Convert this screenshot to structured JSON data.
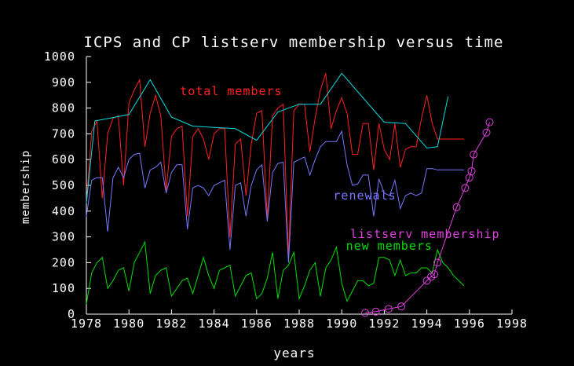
{
  "chart_data": {
    "type": "line",
    "title": "ICPS and CP listserv membership versus time",
    "xlabel": "years",
    "ylabel": "membership",
    "xlim": [
      1978,
      1998
    ],
    "ylim": [
      0,
      1000
    ],
    "grid": false,
    "xticks": [
      1978,
      1980,
      1982,
      1984,
      1986,
      1988,
      1990,
      1992,
      1994,
      1996,
      1998
    ],
    "yticks": [
      0,
      100,
      200,
      300,
      400,
      500,
      600,
      700,
      800,
      900,
      1000
    ],
    "colors": {
      "background": "#000000",
      "axes": "#ffffff",
      "total": "#ff2020",
      "envelope": "#00e0e0",
      "renewals": "#7878ff",
      "new": "#00e000",
      "listserv": "#e040e0"
    },
    "series": [
      {
        "name": "total members",
        "key": "total",
        "label_at": [
          1982.4,
          850
        ],
        "x": [
          1978.0,
          1978.25,
          1978.5,
          1978.75,
          1979.0,
          1979.25,
          1979.5,
          1979.75,
          1980.0,
          1980.25,
          1980.5,
          1980.75,
          1981.0,
          1981.25,
          1981.5,
          1981.75,
          1982.0,
          1982.25,
          1982.5,
          1982.75,
          1983.0,
          1983.25,
          1983.5,
          1983.75,
          1984.0,
          1984.25,
          1984.5,
          1984.75,
          1985.0,
          1985.25,
          1985.5,
          1985.75,
          1986.0,
          1986.25,
          1986.5,
          1986.75,
          1987.0,
          1987.25,
          1987.5,
          1987.75,
          1988.0,
          1988.25,
          1988.5,
          1988.75,
          1989.0,
          1989.25,
          1989.5,
          1989.75,
          1990.0,
          1990.25,
          1990.5,
          1990.75,
          1991.0,
          1991.25,
          1991.5,
          1991.75,
          1992.0,
          1992.25,
          1992.5,
          1992.75,
          1993.0,
          1993.25,
          1993.5,
          1993.75,
          1994.0,
          1994.25,
          1994.5,
          1994.75,
          1995.0,
          1995.25,
          1995.5,
          1995.75
        ],
        "values": [
          430,
          710,
          750,
          450,
          700,
          760,
          770,
          500,
          820,
          870,
          910,
          650,
          780,
          850,
          770,
          480,
          690,
          720,
          730,
          380,
          690,
          720,
          680,
          600,
          700,
          720,
          720,
          300,
          660,
          680,
          460,
          660,
          780,
          790,
          370,
          770,
          800,
          815,
          220,
          790,
          815,
          815,
          630,
          760,
          870,
          935,
          720,
          790,
          840,
          780,
          620,
          620,
          740,
          740,
          560,
          740,
          640,
          600,
          740,
          570,
          640,
          650,
          650,
          760,
          850,
          740,
          680,
          680,
          680,
          680,
          680,
          680
        ]
      },
      {
        "name": "",
        "key": "envelope",
        "x": [
          1978.0,
          1978.4,
          1980.0,
          1981.0,
          1982.0,
          1983.0,
          1984.0,
          1985.0,
          1986.0,
          1987.0,
          1988.0,
          1989.0,
          1990.0,
          1991.0,
          1992.0,
          1993.0,
          1994.0,
          1994.5,
          1995.0
        ],
        "values": [
          430,
          750,
          775,
          910,
          765,
          730,
          725,
          720,
          675,
          785,
          815,
          815,
          935,
          840,
          745,
          740,
          645,
          650,
          845
        ]
      },
      {
        "name": "renewals",
        "key": "renewals",
        "label_at": [
          1989.6,
          445
        ],
        "x": [
          1978.0,
          1978.25,
          1978.5,
          1978.75,
          1979.0,
          1979.25,
          1979.5,
          1979.75,
          1980.0,
          1980.25,
          1980.5,
          1980.75,
          1981.0,
          1981.25,
          1981.5,
          1981.75,
          1982.0,
          1982.25,
          1982.5,
          1982.75,
          1983.0,
          1983.25,
          1983.5,
          1983.75,
          1984.0,
          1984.25,
          1984.5,
          1984.75,
          1985.0,
          1985.25,
          1985.5,
          1985.75,
          1986.0,
          1986.25,
          1986.5,
          1986.75,
          1987.0,
          1987.25,
          1987.5,
          1987.75,
          1988.0,
          1988.25,
          1988.5,
          1988.75,
          1989.0,
          1989.25,
          1989.5,
          1989.75,
          1990.0,
          1990.25,
          1990.5,
          1990.75,
          1991.0,
          1991.25,
          1991.5,
          1991.75,
          1992.0,
          1992.25,
          1992.5,
          1992.75,
          1993.0,
          1993.25,
          1993.5,
          1993.75,
          1994.0,
          1994.25,
          1994.5,
          1994.75,
          1995.0,
          1995.25,
          1995.5,
          1995.75
        ],
        "values": [
          380,
          520,
          530,
          530,
          320,
          530,
          570,
          530,
          600,
          620,
          625,
          490,
          560,
          570,
          590,
          470,
          550,
          580,
          580,
          330,
          490,
          500,
          490,
          460,
          500,
          510,
          520,
          250,
          500,
          510,
          380,
          500,
          560,
          580,
          360,
          550,
          585,
          590,
          200,
          590,
          600,
          610,
          540,
          600,
          650,
          670,
          670,
          670,
          710,
          580,
          500,
          505,
          540,
          540,
          380,
          525,
          470,
          460,
          520,
          410,
          460,
          470,
          460,
          470,
          565,
          565,
          560,
          560,
          560,
          560,
          560,
          560
        ]
      },
      {
        "name": "new members",
        "key": "new",
        "label_at": [
          1990.2,
          250
        ],
        "x": [
          1978.0,
          1978.25,
          1978.5,
          1978.75,
          1979.0,
          1979.25,
          1979.5,
          1979.75,
          1980.0,
          1980.25,
          1980.5,
          1980.75,
          1981.0,
          1981.25,
          1981.5,
          1981.75,
          1982.0,
          1982.25,
          1982.5,
          1982.75,
          1983.0,
          1983.25,
          1983.5,
          1983.75,
          1984.0,
          1984.25,
          1984.5,
          1984.75,
          1985.0,
          1985.25,
          1985.5,
          1985.75,
          1986.0,
          1986.25,
          1986.5,
          1986.75,
          1987.0,
          1987.25,
          1987.5,
          1987.75,
          1988.0,
          1988.25,
          1988.5,
          1988.75,
          1989.0,
          1989.25,
          1989.5,
          1989.75,
          1990.0,
          1990.25,
          1990.5,
          1990.75,
          1991.0,
          1991.25,
          1991.5,
          1991.75,
          1992.0,
          1992.25,
          1992.5,
          1992.75,
          1993.0,
          1993.25,
          1993.5,
          1993.75,
          1994.0,
          1994.25,
          1994.5,
          1994.75,
          1995.0,
          1995.25,
          1995.5,
          1995.75
        ],
        "values": [
          40,
          160,
          200,
          220,
          100,
          130,
          170,
          180,
          90,
          200,
          240,
          280,
          80,
          150,
          170,
          180,
          70,
          100,
          130,
          140,
          80,
          150,
          220,
          150,
          100,
          170,
          180,
          190,
          70,
          110,
          150,
          160,
          60,
          80,
          140,
          240,
          60,
          170,
          190,
          240,
          60,
          110,
          170,
          200,
          70,
          180,
          210,
          260,
          120,
          50,
          90,
          130,
          130,
          110,
          120,
          220,
          220,
          210,
          150,
          210,
          150,
          160,
          160,
          180,
          180,
          160,
          250,
          200,
          180,
          150,
          130,
          110
        ]
      },
      {
        "name": "listserv membership",
        "key": "listserv",
        "label_at": [
          1990.4,
          295
        ],
        "markers": true,
        "x": [
          1991.1,
          1991.6,
          1992.2,
          1992.8,
          1994.0,
          1994.2,
          1994.35,
          1994.5,
          1995.4,
          1995.8,
          1996.0,
          1996.1,
          1996.2,
          1996.8,
          1996.95
        ],
        "values": [
          5,
          10,
          20,
          30,
          130,
          145,
          155,
          200,
          415,
          490,
          530,
          555,
          620,
          705,
          745
        ]
      }
    ]
  }
}
